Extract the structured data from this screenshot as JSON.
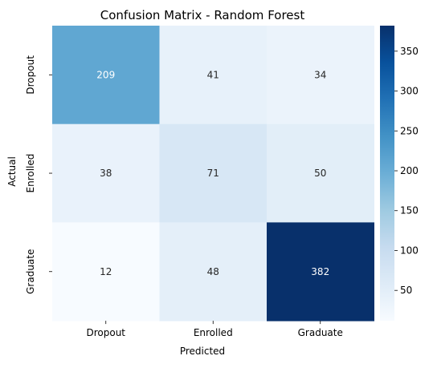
{
  "chart_data": {
    "type": "heatmap",
    "title": "Confusion Matrix - Random Forest",
    "xlabel": "Predicted",
    "ylabel": "Actual",
    "x_categories": [
      "Dropout",
      "Enrolled",
      "Graduate"
    ],
    "y_categories": [
      "Dropout",
      "Enrolled",
      "Graduate"
    ],
    "values": [
      [
        209,
        41,
        34
      ],
      [
        38,
        71,
        50
      ],
      [
        12,
        48,
        382
      ]
    ],
    "colormap": "Blues",
    "colorbar": {
      "min": 12,
      "max": 382,
      "ticks": [
        50,
        100,
        150,
        200,
        250,
        300,
        350
      ]
    },
    "colors": {
      "low": "#f7fbff",
      "high": "#08306b"
    }
  }
}
